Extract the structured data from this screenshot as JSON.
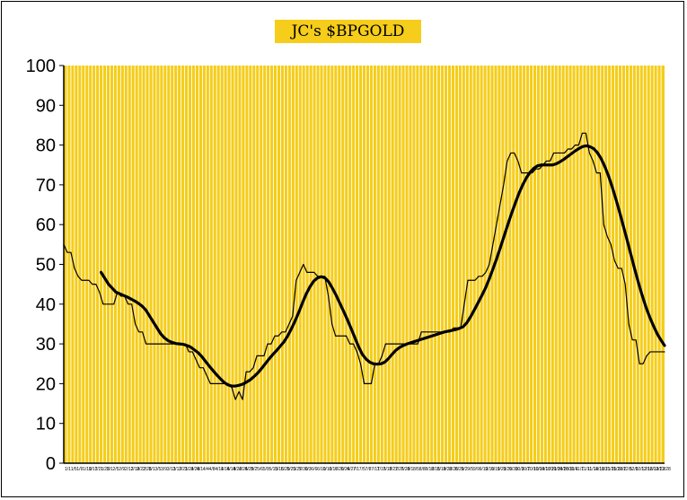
{
  "chart_data": {
    "type": "line",
    "title": "JC's $BPGOLD",
    "xlabel": "",
    "ylabel": "",
    "ylim": [
      0,
      100
    ],
    "yticks": [
      0,
      10,
      20,
      30,
      40,
      50,
      60,
      70,
      80,
      90,
      100
    ],
    "grid": true,
    "legend": "none",
    "colors": {
      "plot_bg": "#f5cd1a",
      "grid": "#ffffff",
      "series": "#000000",
      "title_bg": "#f5cd1a"
    },
    "x_labels": [
      "1/1",
      "1/5",
      "1/9",
      "1/10",
      "1/17",
      "1/21",
      "1/25",
      "2/1",
      "2/5",
      "2/9",
      "2/12",
      "2/19",
      "2/22",
      "2/26",
      "3/1",
      "3/5",
      "3/9",
      "3/13",
      "3/17",
      "3/21",
      "3/24",
      "3/28",
      "4/1",
      "4/4",
      "4/8",
      "4/11",
      "4/15",
      "4/18",
      "4/22",
      "4/25",
      "4/29",
      "5/2",
      "5/6",
      "5/9",
      "5/13",
      "5/16",
      "5/20",
      "5/23",
      "5/27",
      "5/30",
      "6/3",
      "6/6",
      "6/10",
      "6/13",
      "6/17",
      "6/20",
      "6/24",
      "6/27",
      "7/1",
      "7/5",
      "7/8",
      "7/11",
      "7/15",
      "7/18",
      "7/22",
      "7/25",
      "7/29",
      "8/1",
      "8/5",
      "8/8",
      "8/12",
      "8/15",
      "8/19",
      "8/22",
      "8/26",
      "8/29",
      "9/2",
      "9/5",
      "9/9",
      "9/12",
      "9/16",
      "9/19",
      "9/23",
      "9/26",
      "9/30",
      "10/3",
      "10/7",
      "10/10",
      "10/14",
      "10/17",
      "10/21",
      "10/24",
      "10/28",
      "10/31",
      "11/4",
      "11/7",
      "11/11",
      "11/14",
      "11/18",
      "11/21",
      "11/25",
      "11/28",
      "12/2",
      "12/5",
      "12/9",
      "12/12",
      "12/16",
      "12/19",
      "12/23",
      "12/28"
    ],
    "series": [
      {
        "kind": "daily",
        "stroke_width": 1.2,
        "values": [
          55,
          53,
          53,
          49,
          47,
          46,
          46,
          46,
          45,
          45,
          43,
          40,
          40,
          40,
          40,
          43,
          42,
          42,
          40,
          40,
          35,
          33,
          33,
          30,
          30,
          30,
          30,
          30,
          30,
          30,
          30,
          30,
          30,
          30,
          30,
          28,
          28,
          26,
          24,
          24,
          22,
          20,
          20,
          20,
          20,
          20,
          20,
          19,
          16,
          18,
          16,
          23,
          23,
          24,
          27,
          27,
          27,
          30,
          30,
          32,
          32,
          33,
          33,
          35,
          37,
          46,
          48,
          50,
          48,
          48,
          48,
          47,
          47,
          47,
          42,
          35,
          32,
          32,
          32,
          32,
          30,
          30,
          28,
          25,
          20,
          20,
          20,
          25,
          25,
          27,
          30,
          30,
          30,
          30,
          30,
          30,
          30,
          30,
          30,
          30,
          33,
          33,
          33,
          33,
          33,
          33,
          33,
          33,
          33,
          34,
          34,
          34,
          40,
          46,
          46,
          46,
          47,
          47,
          48,
          50,
          55,
          60,
          65,
          70,
          76,
          78,
          78,
          76,
          73,
          73,
          73,
          73,
          74,
          74,
          75,
          76,
          76,
          78,
          78,
          78,
          78,
          79,
          79,
          80,
          80,
          83,
          83,
          78,
          76,
          73,
          73,
          60,
          57,
          55,
          51,
          49,
          49,
          45,
          35,
          31,
          31,
          25,
          25,
          27,
          28,
          28,
          28,
          28,
          28
        ]
      },
      {
        "kind": "smoothed",
        "stroke_width": 3.2,
        "values": [
          null,
          null,
          null,
          null,
          null,
          null,
          null,
          null,
          null,
          null,
          48,
          46.5,
          45,
          44,
          43,
          42.6,
          42.2,
          41.8,
          41.3,
          40.8,
          40.2,
          39.5,
          38.5,
          37,
          35.5,
          34,
          32.5,
          31.5,
          30.8,
          30.4,
          30.1,
          30,
          29.9,
          29.6,
          29.2,
          28.5,
          27.8,
          26.8,
          25.6,
          24.4,
          23.3,
          22.2,
          21.2,
          20.3,
          19.7,
          19.4,
          19.4,
          19.6,
          19.9,
          20.4,
          21,
          21.8,
          22.7,
          23.8,
          25,
          26.2,
          27.3,
          28.3,
          29.4,
          30.5,
          32,
          33.8,
          35.8,
          38,
          40.4,
          42.6,
          44.4,
          45.8,
          46.6,
          46.9,
          46.6,
          45.6,
          44,
          42.2,
          40.2,
          38.2,
          36.1,
          33.9,
          31.6,
          29.3,
          27.4,
          26.2,
          25.4,
          25,
          24.9,
          25,
          25.4,
          26.3,
          27.4,
          28.4,
          29.1,
          29.6,
          30,
          30.3,
          30.6,
          30.9,
          31.2,
          31.5,
          31.8,
          32.1,
          32.4,
          32.7,
          33,
          33.2,
          33.4,
          33.6,
          33.9,
          34.3,
          35.3,
          36.8,
          38.5,
          40.3,
          42.1,
          44,
          46.3,
          48.8,
          51.4,
          54.2,
          57.1,
          60,
          62.8,
          65.4,
          67.9,
          70,
          71.8,
          73.2,
          74.2,
          74.8,
          75,
          75,
          75,
          75,
          75.3,
          75.8,
          76.4,
          77.1,
          77.8,
          78.5,
          79.1,
          79.6,
          79.8,
          79.6,
          79.1,
          78.1,
          76.6,
          74.6,
          72.2,
          69.4,
          66.3,
          63,
          59.5,
          56,
          52.4,
          48.8,
          45.4,
          42.2,
          39.3,
          36.8,
          34.6,
          32.6,
          31,
          29.6
        ]
      }
    ]
  }
}
